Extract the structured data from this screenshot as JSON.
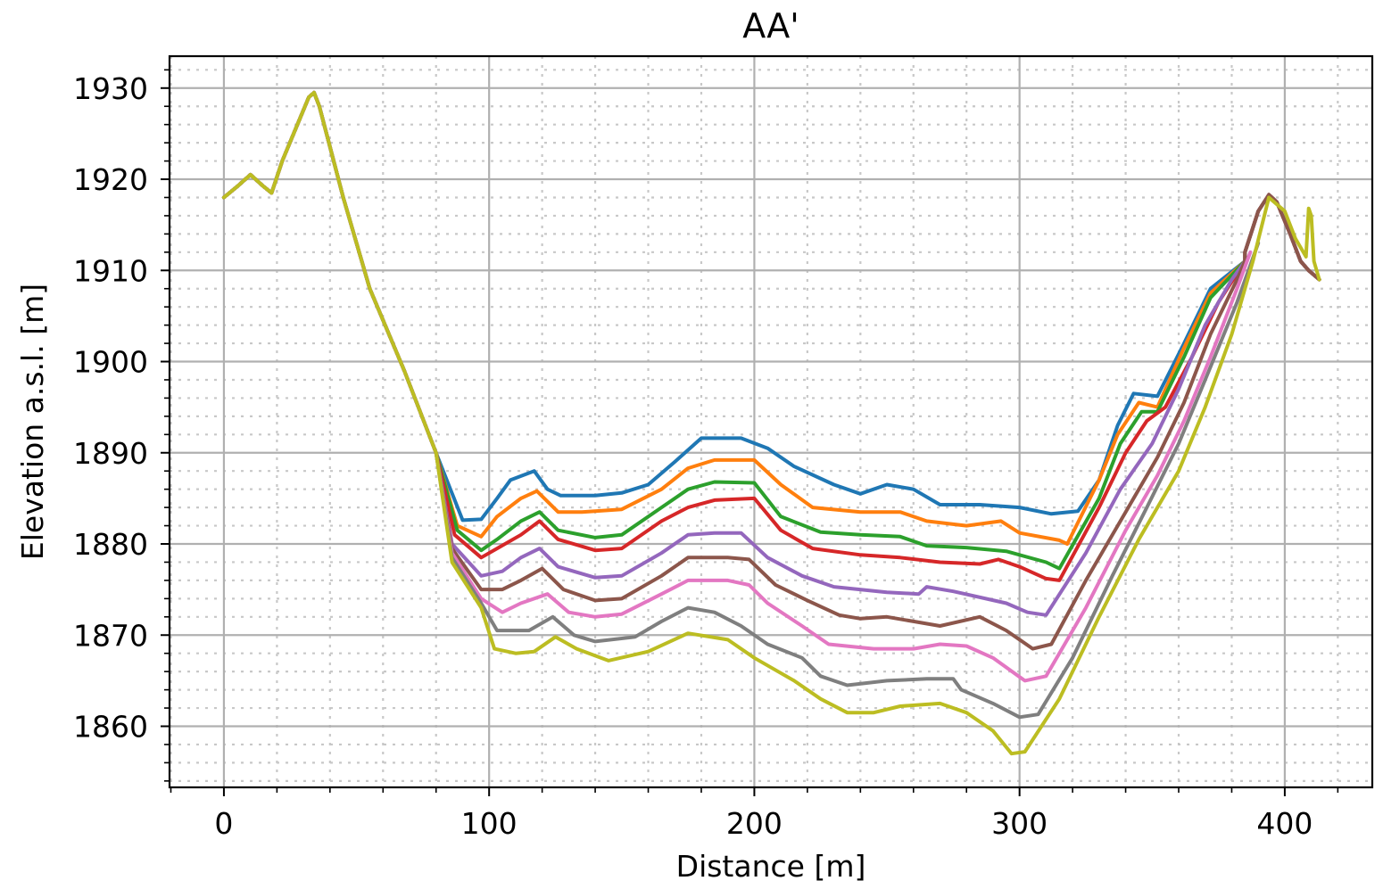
{
  "chart_data": {
    "type": "line",
    "title": "AA'",
    "xlabel": "Distance [m]",
    "ylabel": "Elevation a.s.l. [m]",
    "xlim": [
      -20.5,
      433
    ],
    "ylim": [
      1853.3,
      1933.5
    ],
    "x_ticks": [
      0,
      100,
      200,
      300,
      400
    ],
    "y_ticks": [
      1860,
      1870,
      1880,
      1890,
      1900,
      1910,
      1920,
      1930
    ],
    "x_minor_step": 20,
    "y_minor_step": 2,
    "grid": "major solid, minor dotted",
    "legend": "none",
    "colors": [
      "#1f77b4",
      "#ff7f0e",
      "#2ca02c",
      "#d62728",
      "#9467bd",
      "#8c564b",
      "#e377c2",
      "#7f7f7f",
      "#bcbd22"
    ],
    "shared_left": [
      [
        0,
        1918
      ],
      [
        5,
        1919.2
      ],
      [
        10,
        1920.5
      ],
      [
        15,
        1919.2
      ],
      [
        18,
        1918.5
      ],
      [
        22,
        1922
      ],
      [
        27,
        1925.5
      ],
      [
        32,
        1929
      ],
      [
        34,
        1929.5
      ],
      [
        36,
        1928
      ],
      [
        45,
        1918
      ],
      [
        55,
        1908
      ],
      [
        68,
        1899
      ],
      [
        80,
        1890
      ]
    ],
    "shared_right": [
      [
        385,
        1912
      ],
      [
        390,
        1916.5
      ],
      [
        394,
        1918.3
      ],
      [
        397,
        1917.5
      ],
      [
        402,
        1914
      ],
      [
        406,
        1911
      ],
      [
        409,
        1910
      ],
      [
        413,
        1909
      ]
    ],
    "series": [
      {
        "points": [
          [
            90,
            1882.6
          ],
          [
            97,
            1882.7
          ],
          [
            103,
            1885
          ],
          [
            108,
            1887
          ],
          [
            117,
            1888
          ],
          [
            122,
            1886
          ],
          [
            127,
            1885.3
          ],
          [
            140,
            1885.3
          ],
          [
            150,
            1885.6
          ],
          [
            160,
            1886.5
          ],
          [
            170,
            1889
          ],
          [
            180,
            1891.6
          ],
          [
            195,
            1891.6
          ],
          [
            205,
            1890.5
          ],
          [
            215,
            1888.5
          ],
          [
            230,
            1886.5
          ],
          [
            240,
            1885.5
          ],
          [
            250,
            1886.5
          ],
          [
            260,
            1886
          ],
          [
            270,
            1884.3
          ],
          [
            285,
            1884.3
          ],
          [
            300,
            1884
          ],
          [
            312,
            1883.3
          ],
          [
            322,
            1883.6
          ],
          [
            330,
            1887
          ],
          [
            337,
            1893
          ],
          [
            343,
            1896.5
          ],
          [
            352,
            1896.2
          ],
          [
            362,
            1902
          ],
          [
            372,
            1908
          ],
          [
            385,
            1911
          ]
        ]
      },
      {
        "points": [
          [
            88,
            1882
          ],
          [
            97,
            1880.8
          ],
          [
            103,
            1883
          ],
          [
            112,
            1885
          ],
          [
            118,
            1885.8
          ],
          [
            126,
            1883.5
          ],
          [
            135,
            1883.5
          ],
          [
            150,
            1883.8
          ],
          [
            165,
            1886
          ],
          [
            175,
            1888.3
          ],
          [
            185,
            1889.2
          ],
          [
            200,
            1889.2
          ],
          [
            210,
            1886.5
          ],
          [
            222,
            1884
          ],
          [
            240,
            1883.5
          ],
          [
            255,
            1883.5
          ],
          [
            265,
            1882.5
          ],
          [
            280,
            1882
          ],
          [
            293,
            1882.5
          ],
          [
            300,
            1881.2
          ],
          [
            315,
            1880.4
          ],
          [
            318,
            1880
          ],
          [
            330,
            1887
          ],
          [
            337,
            1892
          ],
          [
            345,
            1895.5
          ],
          [
            352,
            1895
          ],
          [
            362,
            1901.5
          ],
          [
            372,
            1907.5
          ],
          [
            385,
            1911
          ]
        ]
      },
      {
        "points": [
          [
            88,
            1881.5
          ],
          [
            97,
            1879.3
          ],
          [
            103,
            1880.5
          ],
          [
            112,
            1882.5
          ],
          [
            119,
            1883.5
          ],
          [
            126,
            1881.5
          ],
          [
            140,
            1880.7
          ],
          [
            150,
            1881
          ],
          [
            165,
            1884
          ],
          [
            175,
            1886
          ],
          [
            185,
            1886.8
          ],
          [
            200,
            1886.7
          ],
          [
            210,
            1883
          ],
          [
            225,
            1881.3
          ],
          [
            240,
            1881
          ],
          [
            255,
            1880.8
          ],
          [
            265,
            1879.8
          ],
          [
            280,
            1879.6
          ],
          [
            295,
            1879.2
          ],
          [
            310,
            1878
          ],
          [
            315,
            1877.3
          ],
          [
            330,
            1885
          ],
          [
            338,
            1891
          ],
          [
            346,
            1894.5
          ],
          [
            352,
            1894.5
          ],
          [
            362,
            1900.5
          ],
          [
            372,
            1907
          ],
          [
            385,
            1911
          ]
        ]
      },
      {
        "points": [
          [
            87,
            1881
          ],
          [
            97,
            1878.5
          ],
          [
            103,
            1879.5
          ],
          [
            112,
            1881
          ],
          [
            119,
            1882.5
          ],
          [
            126,
            1880.5
          ],
          [
            140,
            1879.3
          ],
          [
            150,
            1879.5
          ],
          [
            165,
            1882.5
          ],
          [
            175,
            1884
          ],
          [
            185,
            1884.8
          ],
          [
            200,
            1885
          ],
          [
            210,
            1881.5
          ],
          [
            222,
            1879.5
          ],
          [
            240,
            1878.8
          ],
          [
            255,
            1878.5
          ],
          [
            270,
            1878
          ],
          [
            285,
            1877.8
          ],
          [
            292,
            1878.3
          ],
          [
            300,
            1877.5
          ],
          [
            310,
            1876.2
          ],
          [
            315,
            1876
          ],
          [
            330,
            1884
          ],
          [
            340,
            1890
          ],
          [
            348,
            1893.5
          ],
          [
            355,
            1895
          ],
          [
            365,
            1900.5
          ],
          [
            375,
            1906.5
          ],
          [
            385,
            1911
          ]
        ]
      },
      {
        "points": [
          [
            86,
            1880
          ],
          [
            97,
            1876.5
          ],
          [
            105,
            1877
          ],
          [
            112,
            1878.5
          ],
          [
            119,
            1879.5
          ],
          [
            126,
            1877.5
          ],
          [
            140,
            1876.3
          ],
          [
            150,
            1876.5
          ],
          [
            165,
            1879
          ],
          [
            175,
            1881
          ],
          [
            185,
            1881.2
          ],
          [
            195,
            1881.2
          ],
          [
            205,
            1878.5
          ],
          [
            218,
            1876.5
          ],
          [
            230,
            1875.3
          ],
          [
            250,
            1874.7
          ],
          [
            262,
            1874.5
          ],
          [
            265,
            1875.3
          ],
          [
            275,
            1874.8
          ],
          [
            295,
            1873.5
          ],
          [
            303,
            1872.5
          ],
          [
            310,
            1872.2
          ],
          [
            325,
            1879
          ],
          [
            338,
            1886
          ],
          [
            350,
            1891
          ],
          [
            360,
            1897
          ],
          [
            370,
            1904
          ],
          [
            380,
            1909
          ],
          [
            385,
            1911
          ]
        ]
      },
      {
        "points": [
          [
            86,
            1879.5
          ],
          [
            97,
            1875
          ],
          [
            105,
            1875
          ],
          [
            112,
            1876
          ],
          [
            120,
            1877.3
          ],
          [
            128,
            1875
          ],
          [
            140,
            1873.8
          ],
          [
            150,
            1874
          ],
          [
            165,
            1876.5
          ],
          [
            175,
            1878.5
          ],
          [
            190,
            1878.5
          ],
          [
            198,
            1878.3
          ],
          [
            208,
            1875.5
          ],
          [
            220,
            1873.8
          ],
          [
            232,
            1872.2
          ],
          [
            240,
            1871.8
          ],
          [
            250,
            1872
          ],
          [
            260,
            1871.5
          ],
          [
            270,
            1871
          ],
          [
            285,
            1872
          ],
          [
            295,
            1870.5
          ],
          [
            305,
            1868.5
          ],
          [
            312,
            1869
          ],
          [
            325,
            1876
          ],
          [
            340,
            1883.5
          ],
          [
            352,
            1889.5
          ],
          [
            362,
            1895.5
          ],
          [
            372,
            1903
          ],
          [
            382,
            1909
          ],
          [
            385,
            1911
          ]
        ]
      },
      {
        "points": [
          [
            86,
            1879
          ],
          [
            97,
            1874
          ],
          [
            105,
            1872.5
          ],
          [
            112,
            1873.5
          ],
          [
            122,
            1874.5
          ],
          [
            130,
            1872.5
          ],
          [
            140,
            1872
          ],
          [
            150,
            1872.3
          ],
          [
            165,
            1874.5
          ],
          [
            175,
            1876
          ],
          [
            190,
            1876
          ],
          [
            198,
            1875.5
          ],
          [
            205,
            1873.5
          ],
          [
            218,
            1871
          ],
          [
            228,
            1869
          ],
          [
            245,
            1868.5
          ],
          [
            260,
            1868.5
          ],
          [
            270,
            1869
          ],
          [
            280,
            1868.8
          ],
          [
            290,
            1867.5
          ],
          [
            302,
            1865
          ],
          [
            310,
            1865.5
          ],
          [
            325,
            1873
          ],
          [
            340,
            1881.5
          ],
          [
            352,
            1887.5
          ],
          [
            362,
            1893.5
          ],
          [
            372,
            1900.5
          ],
          [
            382,
            1908
          ],
          [
            387,
            1912
          ]
        ]
      },
      {
        "points": [
          [
            86,
            1878.5
          ],
          [
            97,
            1873.5
          ],
          [
            103,
            1870.5
          ],
          [
            115,
            1870.5
          ],
          [
            124,
            1872
          ],
          [
            132,
            1870
          ],
          [
            140,
            1869.3
          ],
          [
            155,
            1869.8
          ],
          [
            165,
            1871.5
          ],
          [
            175,
            1873
          ],
          [
            185,
            1872.5
          ],
          [
            195,
            1871
          ],
          [
            205,
            1869
          ],
          [
            218,
            1867.5
          ],
          [
            225,
            1865.5
          ],
          [
            235,
            1864.5
          ],
          [
            250,
            1865
          ],
          [
            265,
            1865.2
          ],
          [
            275,
            1865.2
          ],
          [
            278,
            1864
          ],
          [
            290,
            1862.5
          ],
          [
            300,
            1861
          ],
          [
            307,
            1861.3
          ],
          [
            320,
            1867.5
          ],
          [
            335,
            1876.5
          ],
          [
            348,
            1884
          ],
          [
            360,
            1891
          ],
          [
            370,
            1898
          ],
          [
            382,
            1906.5
          ],
          [
            390,
            1913
          ]
        ]
      },
      {
        "points": [
          [
            86,
            1878
          ],
          [
            97,
            1873
          ],
          [
            102,
            1868.5
          ],
          [
            110,
            1868
          ],
          [
            117,
            1868.2
          ],
          [
            125,
            1869.8
          ],
          [
            133,
            1868.5
          ],
          [
            145,
            1867.2
          ],
          [
            160,
            1868.2
          ],
          [
            175,
            1870.2
          ],
          [
            190,
            1869.5
          ],
          [
            200,
            1867.5
          ],
          [
            215,
            1865
          ],
          [
            225,
            1863
          ],
          [
            235,
            1861.5
          ],
          [
            245,
            1861.5
          ],
          [
            255,
            1862.2
          ],
          [
            270,
            1862.5
          ],
          [
            280,
            1861.5
          ],
          [
            290,
            1859.5
          ],
          [
            297,
            1857
          ],
          [
            302,
            1857.2
          ],
          [
            315,
            1863
          ],
          [
            330,
            1872
          ],
          [
            345,
            1880.5
          ],
          [
            360,
            1888
          ],
          [
            370,
            1895
          ],
          [
            380,
            1903
          ],
          [
            388,
            1911
          ],
          [
            394,
            1918
          ],
          [
            400,
            1916.5
          ],
          [
            404,
            1913.5
          ],
          [
            408,
            1911.5
          ],
          [
            409,
            1916.8
          ],
          [
            410,
            1916
          ],
          [
            411,
            1911
          ],
          [
            413,
            1909
          ]
        ]
      }
    ]
  }
}
